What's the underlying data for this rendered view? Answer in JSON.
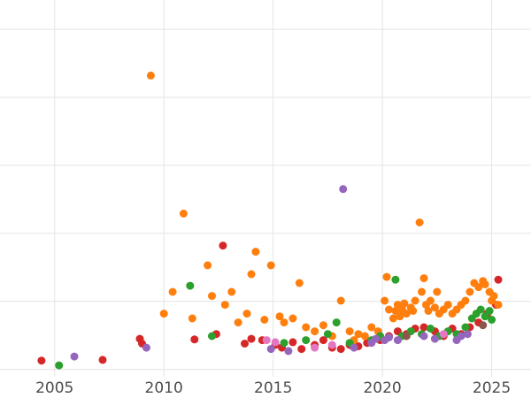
{
  "chart_data": {
    "type": "scatter",
    "title": "",
    "xlabel": "",
    "ylabel": "",
    "legend": "none",
    "grid": true,
    "background": "#ffffff",
    "gridline_color": "#e4e4e4",
    "tick_label_color": "#4d4d4d",
    "x_ticks": [
      2005,
      2010,
      2015,
      2020,
      2025
    ],
    "x_tick_labels": [
      "2005",
      "2010",
      "2015",
      "2020",
      "2025"
    ],
    "y_gridline_values": [
      0,
      1,
      2,
      3,
      4,
      5
    ],
    "y_tick_labels_visible": false,
    "xlim": [
      2002.5,
      2026.8
    ],
    "ylim": [
      -0.16,
      5.43
    ],
    "marker": {
      "shape": "circle",
      "radius_px": 4.5
    },
    "series": [
      {
        "name": "red",
        "color": "#d62728",
        "points": [
          [
            2004.4,
            0.13
          ],
          [
            2007.2,
            0.14
          ],
          [
            2008.9,
            0.45
          ],
          [
            2009.0,
            0.38
          ],
          [
            2011.4,
            0.44
          ],
          [
            2012.4,
            0.52
          ],
          [
            2012.7,
            1.82
          ],
          [
            2013.7,
            0.38
          ],
          [
            2014.0,
            0.45
          ],
          [
            2014.5,
            0.43
          ],
          [
            2015.1,
            0.36
          ],
          [
            2015.4,
            0.32
          ],
          [
            2015.9,
            0.4
          ],
          [
            2016.3,
            0.3
          ],
          [
            2016.9,
            0.36
          ],
          [
            2017.3,
            0.43
          ],
          [
            2017.7,
            0.32
          ],
          [
            2018.1,
            0.3
          ],
          [
            2018.5,
            0.36
          ],
          [
            2018.9,
            0.34
          ],
          [
            2019.3,
            0.39
          ],
          [
            2019.9,
            0.43
          ],
          [
            2020.3,
            0.49
          ],
          [
            2020.7,
            0.56
          ],
          [
            2021.1,
            0.52
          ],
          [
            2021.5,
            0.6
          ],
          [
            2021.9,
            0.62
          ],
          [
            2022.4,
            0.56
          ],
          [
            2022.8,
            0.49
          ],
          [
            2023.2,
            0.6
          ],
          [
            2023.6,
            0.52
          ],
          [
            2024.0,
            0.62
          ],
          [
            2024.4,
            0.69
          ],
          [
            2024.8,
            0.82
          ],
          [
            2025.2,
            0.95
          ],
          [
            2025.3,
            1.32
          ]
        ]
      },
      {
        "name": "orange",
        "color": "#ff7f0e",
        "points": [
          [
            2009.4,
            4.32
          ],
          [
            2010.0,
            0.82
          ],
          [
            2010.4,
            1.14
          ],
          [
            2010.9,
            2.29
          ],
          [
            2011.3,
            0.75
          ],
          [
            2012.0,
            1.53
          ],
          [
            2012.2,
            1.08
          ],
          [
            2012.8,
            0.95
          ],
          [
            2013.1,
            1.14
          ],
          [
            2013.4,
            0.69
          ],
          [
            2013.8,
            0.82
          ],
          [
            2014.0,
            1.4
          ],
          [
            2014.2,
            1.73
          ],
          [
            2014.6,
            0.73
          ],
          [
            2014.9,
            1.53
          ],
          [
            2015.3,
            0.78
          ],
          [
            2015.5,
            0.69
          ],
          [
            2015.9,
            0.75
          ],
          [
            2016.2,
            1.27
          ],
          [
            2016.5,
            0.62
          ],
          [
            2016.9,
            0.56
          ],
          [
            2017.3,
            0.65
          ],
          [
            2017.7,
            0.49
          ],
          [
            2018.1,
            1.01
          ],
          [
            2018.5,
            0.56
          ],
          [
            2018.7,
            0.43
          ],
          [
            2018.9,
            0.52
          ],
          [
            2019.2,
            0.49
          ],
          [
            2019.5,
            0.62
          ],
          [
            2019.8,
            0.56
          ],
          [
            2020.1,
            1.01
          ],
          [
            2020.2,
            1.36
          ],
          [
            2020.3,
            0.88
          ],
          [
            2020.5,
            0.75
          ],
          [
            2020.6,
            0.86
          ],
          [
            2020.7,
            0.95
          ],
          [
            2020.8,
            0.78
          ],
          [
            2020.9,
            0.88
          ],
          [
            2021.0,
            0.97
          ],
          [
            2021.1,
            0.82
          ],
          [
            2021.3,
            0.91
          ],
          [
            2021.4,
            0.86
          ],
          [
            2021.5,
            1.01
          ],
          [
            2021.7,
            2.16
          ],
          [
            2021.8,
            1.14
          ],
          [
            2021.9,
            1.34
          ],
          [
            2022.0,
            0.95
          ],
          [
            2022.1,
            0.86
          ],
          [
            2022.2,
            1.01
          ],
          [
            2022.4,
            0.91
          ],
          [
            2022.5,
            1.14
          ],
          [
            2022.6,
            0.82
          ],
          [
            2022.8,
            0.88
          ],
          [
            2023.0,
            0.95
          ],
          [
            2023.2,
            0.82
          ],
          [
            2023.4,
            0.88
          ],
          [
            2023.6,
            0.95
          ],
          [
            2023.8,
            1.01
          ],
          [
            2024.0,
            1.14
          ],
          [
            2024.2,
            1.27
          ],
          [
            2024.4,
            1.21
          ],
          [
            2024.6,
            1.3
          ],
          [
            2024.7,
            1.25
          ],
          [
            2024.9,
            1.14
          ],
          [
            2025.0,
            1.01
          ],
          [
            2025.1,
            1.08
          ],
          [
            2025.3,
            0.95
          ]
        ]
      },
      {
        "name": "green",
        "color": "#2ca02c",
        "points": [
          [
            2005.2,
            0.06
          ],
          [
            2011.2,
            1.23
          ],
          [
            2012.2,
            0.49
          ],
          [
            2015.5,
            0.39
          ],
          [
            2016.5,
            0.43
          ],
          [
            2017.5,
            0.52
          ],
          [
            2017.9,
            0.69
          ],
          [
            2018.5,
            0.39
          ],
          [
            2019.5,
            0.43
          ],
          [
            2019.9,
            0.49
          ],
          [
            2020.6,
            1.32
          ],
          [
            2020.9,
            0.49
          ],
          [
            2021.3,
            0.56
          ],
          [
            2021.8,
            0.52
          ],
          [
            2022.2,
            0.6
          ],
          [
            2022.6,
            0.49
          ],
          [
            2023.0,
            0.56
          ],
          [
            2023.4,
            0.52
          ],
          [
            2023.8,
            0.62
          ],
          [
            2024.1,
            0.75
          ],
          [
            2024.3,
            0.82
          ],
          [
            2024.5,
            0.88
          ],
          [
            2024.7,
            0.78
          ],
          [
            2024.9,
            0.86
          ],
          [
            2025.0,
            0.73
          ]
        ]
      },
      {
        "name": "purple",
        "color": "#9467bd",
        "points": [
          [
            2005.9,
            0.19
          ],
          [
            2009.2,
            0.32
          ],
          [
            2014.9,
            0.3
          ],
          [
            2015.7,
            0.27
          ],
          [
            2018.2,
            2.65
          ],
          [
            2018.7,
            0.32
          ],
          [
            2019.5,
            0.39
          ],
          [
            2019.7,
            0.45
          ],
          [
            2020.1,
            0.43
          ],
          [
            2020.3,
            0.47
          ],
          [
            2020.7,
            0.43
          ],
          [
            2021.9,
            0.49
          ],
          [
            2022.4,
            0.45
          ],
          [
            2023.4,
            0.43
          ],
          [
            2023.6,
            0.49
          ],
          [
            2023.9,
            0.52
          ]
        ]
      },
      {
        "name": "pink",
        "color": "#e377c2",
        "points": [
          [
            2014.7,
            0.43
          ],
          [
            2015.1,
            0.4
          ],
          [
            2016.9,
            0.32
          ],
          [
            2017.7,
            0.36
          ],
          [
            2022.8,
            0.52
          ]
        ]
      },
      {
        "name": "brown",
        "color": "#8c564b",
        "points": [
          [
            2021.1,
            0.49
          ],
          [
            2024.6,
            0.65
          ]
        ]
      }
    ]
  }
}
